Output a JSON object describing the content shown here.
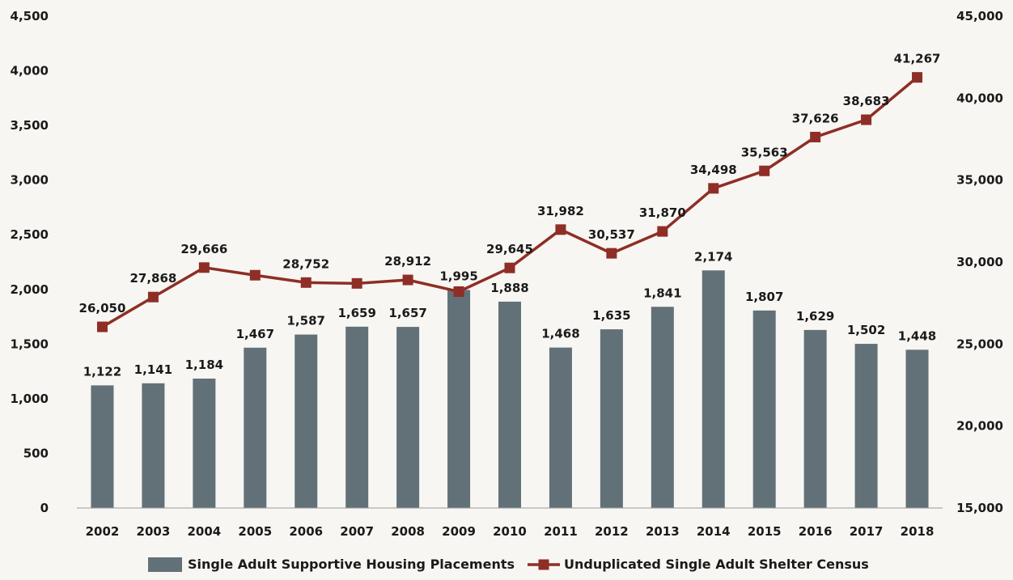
{
  "chart_data": {
    "type": "bar",
    "categories": [
      "2002",
      "2003",
      "2004",
      "2005",
      "2006",
      "2007",
      "2008",
      "2009",
      "2010",
      "2011",
      "2012",
      "2013",
      "2014",
      "2015",
      "2016",
      "2017",
      "2018"
    ],
    "series": [
      {
        "name": "Single Adult Supportive Housing Placements",
        "kind": "bar",
        "axis": "left",
        "values": [
          1122,
          1141,
          1184,
          1467,
          1587,
          1659,
          1657,
          1995,
          1888,
          1468,
          1635,
          1841,
          2174,
          1807,
          1629,
          1502,
          1448
        ],
        "labels": [
          "1,122",
          "1,141",
          "1,184",
          "1,467",
          "1,587",
          "1,659",
          "1,657",
          "1,995",
          "1,888",
          "1,468",
          "1,635",
          "1,841",
          "2,174",
          "1,807",
          "1,629",
          "1,502",
          "1,448"
        ]
      },
      {
        "name": "Unduplicated Single Adult Shelter Census",
        "kind": "line",
        "axis": "right",
        "values": [
          26050,
          27868,
          29666,
          29200,
          28752,
          28700,
          28912,
          28200,
          29645,
          31982,
          30537,
          31870,
          34498,
          35563,
          37626,
          38683,
          41267
        ],
        "labels": [
          "26,050",
          "27,868",
          "29,666",
          "",
          "28,752",
          "",
          "28,912",
          "",
          "29,645",
          "31,982",
          "30,537",
          "31,870",
          "34,498",
          "35,563",
          "37,626",
          "38,683",
          "41,267"
        ]
      }
    ],
    "y_left": {
      "range": [
        0,
        4500
      ],
      "ticks": [
        0,
        500,
        1000,
        1500,
        2000,
        2500,
        3000,
        3500,
        4000,
        4500
      ],
      "tick_labels": [
        "0",
        "500",
        "1,000",
        "1,500",
        "2,000",
        "2,500",
        "3,000",
        "3,500",
        "4,000",
        "4,500"
      ]
    },
    "y_right": {
      "range": [
        15000,
        45000
      ],
      "ticks": [
        15000,
        20000,
        25000,
        30000,
        35000,
        40000,
        45000
      ],
      "tick_labels": [
        "15,000",
        "20,000",
        "25,000",
        "30,000",
        "35,000",
        "40,000",
        "45,000"
      ]
    },
    "grid": false,
    "legend_position": "bottom-center",
    "colors": {
      "bar": "#627178",
      "line": "#8e2e26",
      "background": "#f7f6f2"
    }
  }
}
